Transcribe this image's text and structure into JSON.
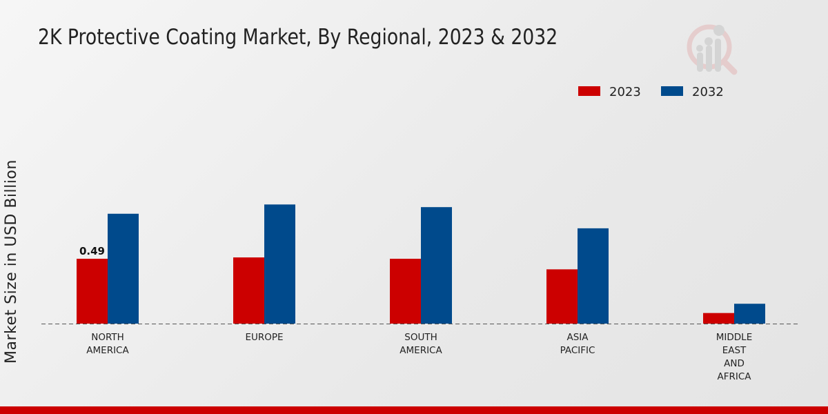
{
  "chart_data": {
    "type": "bar",
    "title": "2K Protective Coating Market, By Regional, 2023 & 2032",
    "xlabel": "",
    "ylabel": "Market Size in USD Billion",
    "categories": [
      [
        "NORTH",
        "AMERICA"
      ],
      [
        "EUROPE"
      ],
      [
        "SOUTH",
        "AMERICA"
      ],
      [
        "ASIA",
        "PACIFIC"
      ],
      [
        "MIDDLE",
        "EAST",
        "AND",
        "AFRICA"
      ]
    ],
    "series": [
      {
        "name": "2023",
        "color": "#cc0000",
        "values": [
          0.49,
          0.5,
          0.49,
          0.41,
          0.08
        ]
      },
      {
        "name": "2032",
        "color": "#004a8c",
        "values": [
          0.83,
          0.9,
          0.88,
          0.72,
          0.15
        ]
      }
    ],
    "data_labels": [
      {
        "series": 0,
        "index": 0,
        "text": "0.49"
      }
    ],
    "legend_position": "top-right",
    "grid": false,
    "ylim": [
      0,
      1.0
    ]
  },
  "footer_color": "#cc0000"
}
